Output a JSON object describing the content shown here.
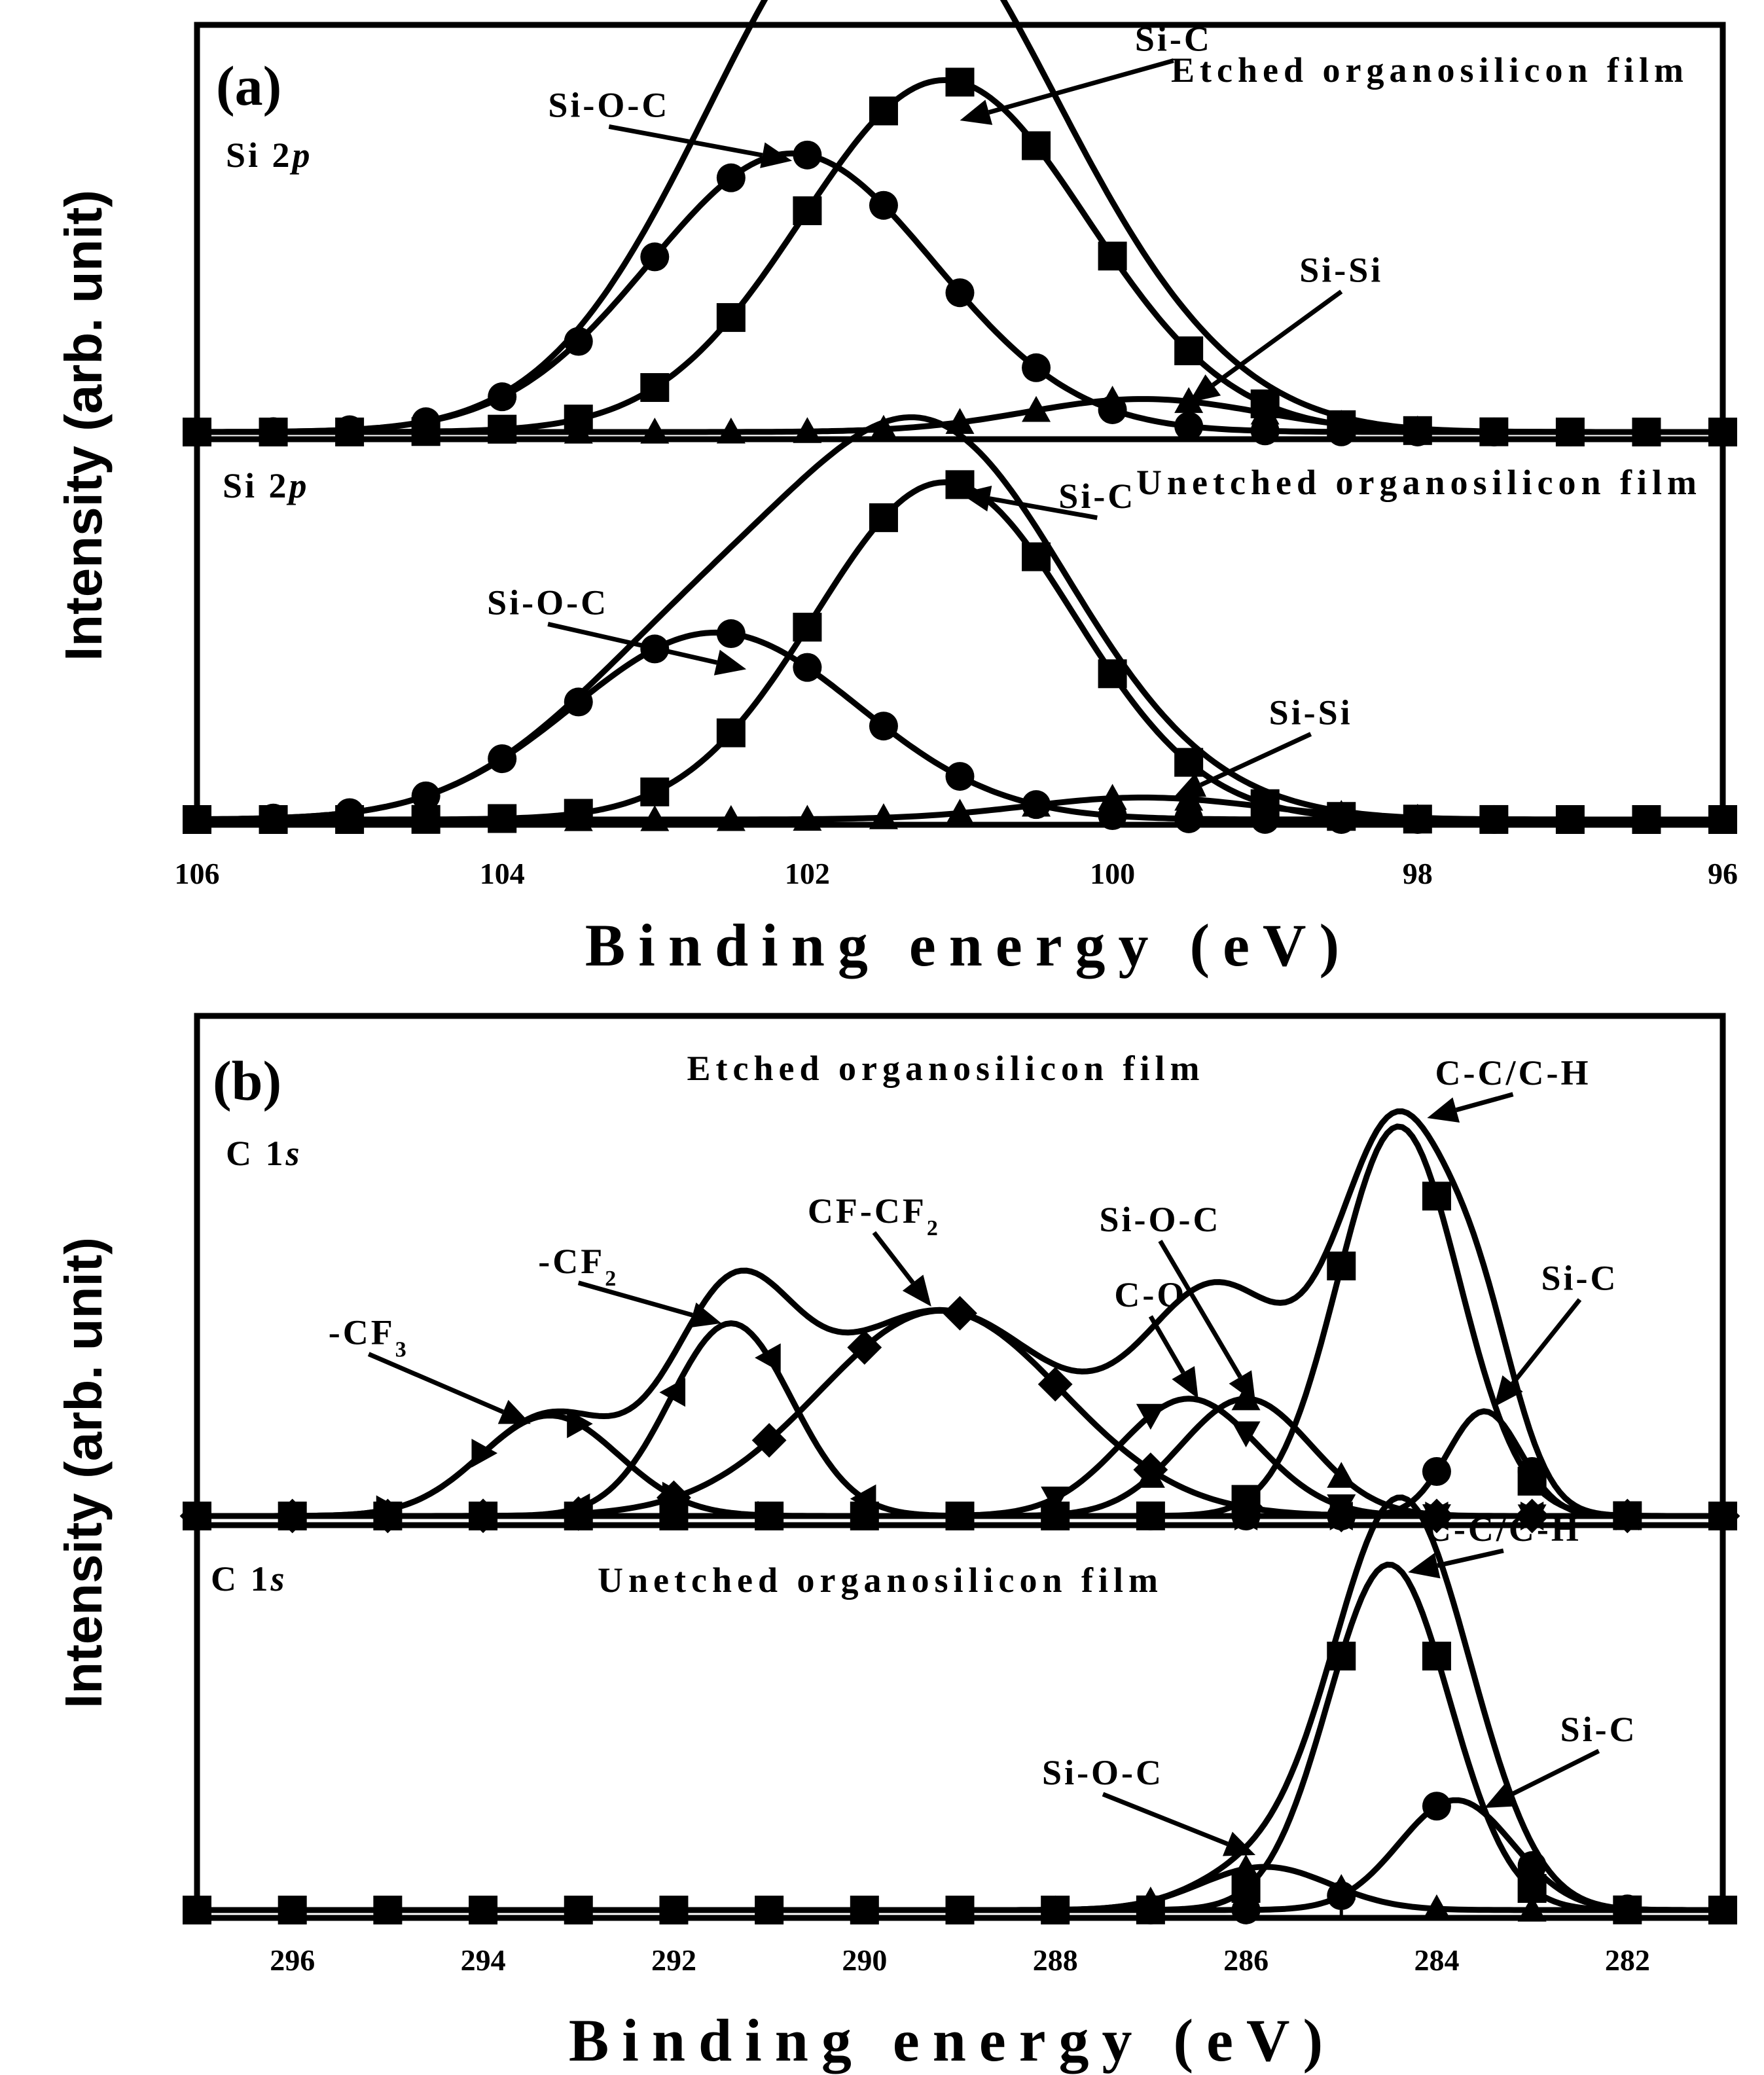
{
  "chart_data": [
    {
      "type": "line",
      "panel_label": "(a)",
      "xlabel": "Binding energy (eV)",
      "ylabel": "Intensity (arb. unit)",
      "xlim": [
        106,
        96
      ],
      "x_ticks": [
        "106",
        "104",
        "102",
        "100",
        "98",
        "96"
      ],
      "subplots": [
        {
          "id": "a-etched",
          "core_level": "Si 2p",
          "film": "Etched organosilicon film",
          "ylim": [
            0,
            1
          ],
          "baseline": 0.02,
          "components": [
            {
              "name": "Si-O-C",
              "marker": "circle",
              "center": 102.1,
              "fwhm": 2.2,
              "height": 0.76
            },
            {
              "name": "Si-C",
              "marker": "square",
              "center": 101.1,
              "fwhm": 2.2,
              "height": 0.96
            },
            {
              "name": "Si-Si",
              "marker": "triangle",
              "center": 99.8,
              "fwhm": 1.8,
              "height": 0.09
            }
          ],
          "annotations": [
            {
              "text": "Si-O-C",
              "x": 103.3,
              "y": 0.88,
              "arrow_to": [
                102.1,
                0.76
              ]
            },
            {
              "text": "Si-C",
              "x": 99.6,
              "y": 1.06,
              "arrow_to": [
                101.0,
                0.87
              ]
            },
            {
              "text": "Si-Si",
              "x": 98.5,
              "y": 0.43,
              "arrow_to": [
                99.5,
                0.1
              ]
            }
          ]
        },
        {
          "id": "a-unetched",
          "core_level": "Si 2p",
          "film": "Unetched organosilicon film",
          "ylim": [
            0,
            1
          ],
          "baseline": 0.02,
          "components": [
            {
              "name": "Si-O-C",
              "marker": "circle",
              "center": 102.6,
              "fwhm": 2.2,
              "height": 0.51
            },
            {
              "name": "Si-C",
              "marker": "square",
              "center": 101.1,
              "fwhm": 2.0,
              "height": 0.92
            },
            {
              "name": "Si-Si",
              "marker": "triangle",
              "center": 99.8,
              "fwhm": 1.8,
              "height": 0.06
            }
          ],
          "annotations": [
            {
              "text": "Si-O-C",
              "x": 103.7,
              "y": 0.58,
              "arrow_to": [
                102.4,
                0.43
              ]
            },
            {
              "text": "Si-C",
              "x": 100.1,
              "y": 0.87,
              "arrow_to": [
                101.0,
                0.91
              ]
            },
            {
              "text": "Si-Si",
              "x": 98.7,
              "y": 0.28,
              "arrow_to": [
                99.6,
                0.08
              ]
            }
          ]
        }
      ]
    },
    {
      "type": "line",
      "panel_label": "(b)",
      "xlabel": "Binding energy (eV)",
      "ylabel": "Intensity (arb. unit)",
      "xlim": [
        297,
        281
      ],
      "x_ticks": [
        "296",
        "294",
        "292",
        "290",
        "288",
        "286",
        "284",
        "282"
      ],
      "subplots": [
        {
          "id": "b-etched",
          "core_level": "C 1s",
          "film": "Etched organosilicon film",
          "ylim": [
            0,
            1
          ],
          "baseline": 0.02,
          "components": [
            {
              "name": "-CF3",
              "marker": "triangle-right",
              "center": 293.3,
              "fwhm": 1.7,
              "height": 0.24
            },
            {
              "name": "-CF2",
              "marker": "triangle-left",
              "center": 291.4,
              "fwhm": 1.5,
              "height": 0.46
            },
            {
              "name": "CF-CF2",
              "marker": "diamond",
              "center": 289.2,
              "fwhm": 3.0,
              "height": 0.49
            },
            {
              "name": "C-O",
              "marker": "triangle-down",
              "center": 286.6,
              "fwhm": 1.7,
              "height": 0.28
            },
            {
              "name": "Si-O-C",
              "marker": "triangle",
              "center": 286.0,
              "fwhm": 1.6,
              "height": 0.28
            },
            {
              "name": "C-C/C-H",
              "marker": "square",
              "center": 284.4,
              "fwhm": 1.5,
              "height": 0.93
            },
            {
              "name": "Si-C",
              "marker": "circle",
              "center": 283.5,
              "fwhm": 0.9,
              "height": 0.25
            }
          ],
          "annotations": [
            {
              "text": "-CF",
              "sub": "3",
              "x": 295.2,
              "y": 0.43,
              "arrow_to": [
                293.5,
                0.24
              ]
            },
            {
              "text": "-CF",
              "sub": "2",
              "x": 293.0,
              "y": 0.6,
              "arrow_to": [
                291.5,
                0.48
              ]
            },
            {
              "text": "CF-CF",
              "sub": "2",
              "x": 289.9,
              "y": 0.72,
              "arrow_to": [
                289.3,
                0.52
              ]
            },
            {
              "text": "C-O",
              "x": 287.0,
              "y": 0.52,
              "arrow_to": [
                286.5,
                0.3
              ]
            },
            {
              "text": "Si-O-C",
              "x": 286.9,
              "y": 0.7,
              "arrow_to": [
                285.9,
                0.29
              ]
            },
            {
              "text": "C-C/C-H",
              "x": 283.2,
              "y": 1.05,
              "arrow_to": [
                284.1,
                0.97
              ]
            },
            {
              "text": "Si-C",
              "x": 282.5,
              "y": 0.56,
              "arrow_to": [
                283.4,
                0.28
              ]
            }
          ]
        },
        {
          "id": "b-unetched",
          "core_level": "C 1s",
          "film": "Unetched organosilicon film",
          "ylim": [
            0,
            1
          ],
          "baseline": 0.02,
          "components": [
            {
              "name": "Si-O-C",
              "marker": "triangle",
              "center": 285.8,
              "fwhm": 1.6,
              "height": 0.11
            },
            {
              "name": "C-C/C-H",
              "marker": "square",
              "center": 284.5,
              "fwhm": 1.5,
              "height": 0.88
            },
            {
              "name": "Si-C",
              "marker": "circle",
              "center": 283.8,
              "fwhm": 1.4,
              "height": 0.28
            }
          ],
          "annotations": [
            {
              "text": "Si-O-C",
              "x": 287.5,
              "y": 0.34,
              "arrow_to": [
                285.9,
                0.16
              ]
            },
            {
              "text": "C-C/C-H",
              "x": 283.3,
              "y": 0.96,
              "arrow_to": [
                284.3,
                0.88
              ]
            },
            {
              "text": "Si-C",
              "x": 282.3,
              "y": 0.45,
              "arrow_to": [
                283.5,
                0.28
              ]
            }
          ]
        }
      ]
    }
  ]
}
